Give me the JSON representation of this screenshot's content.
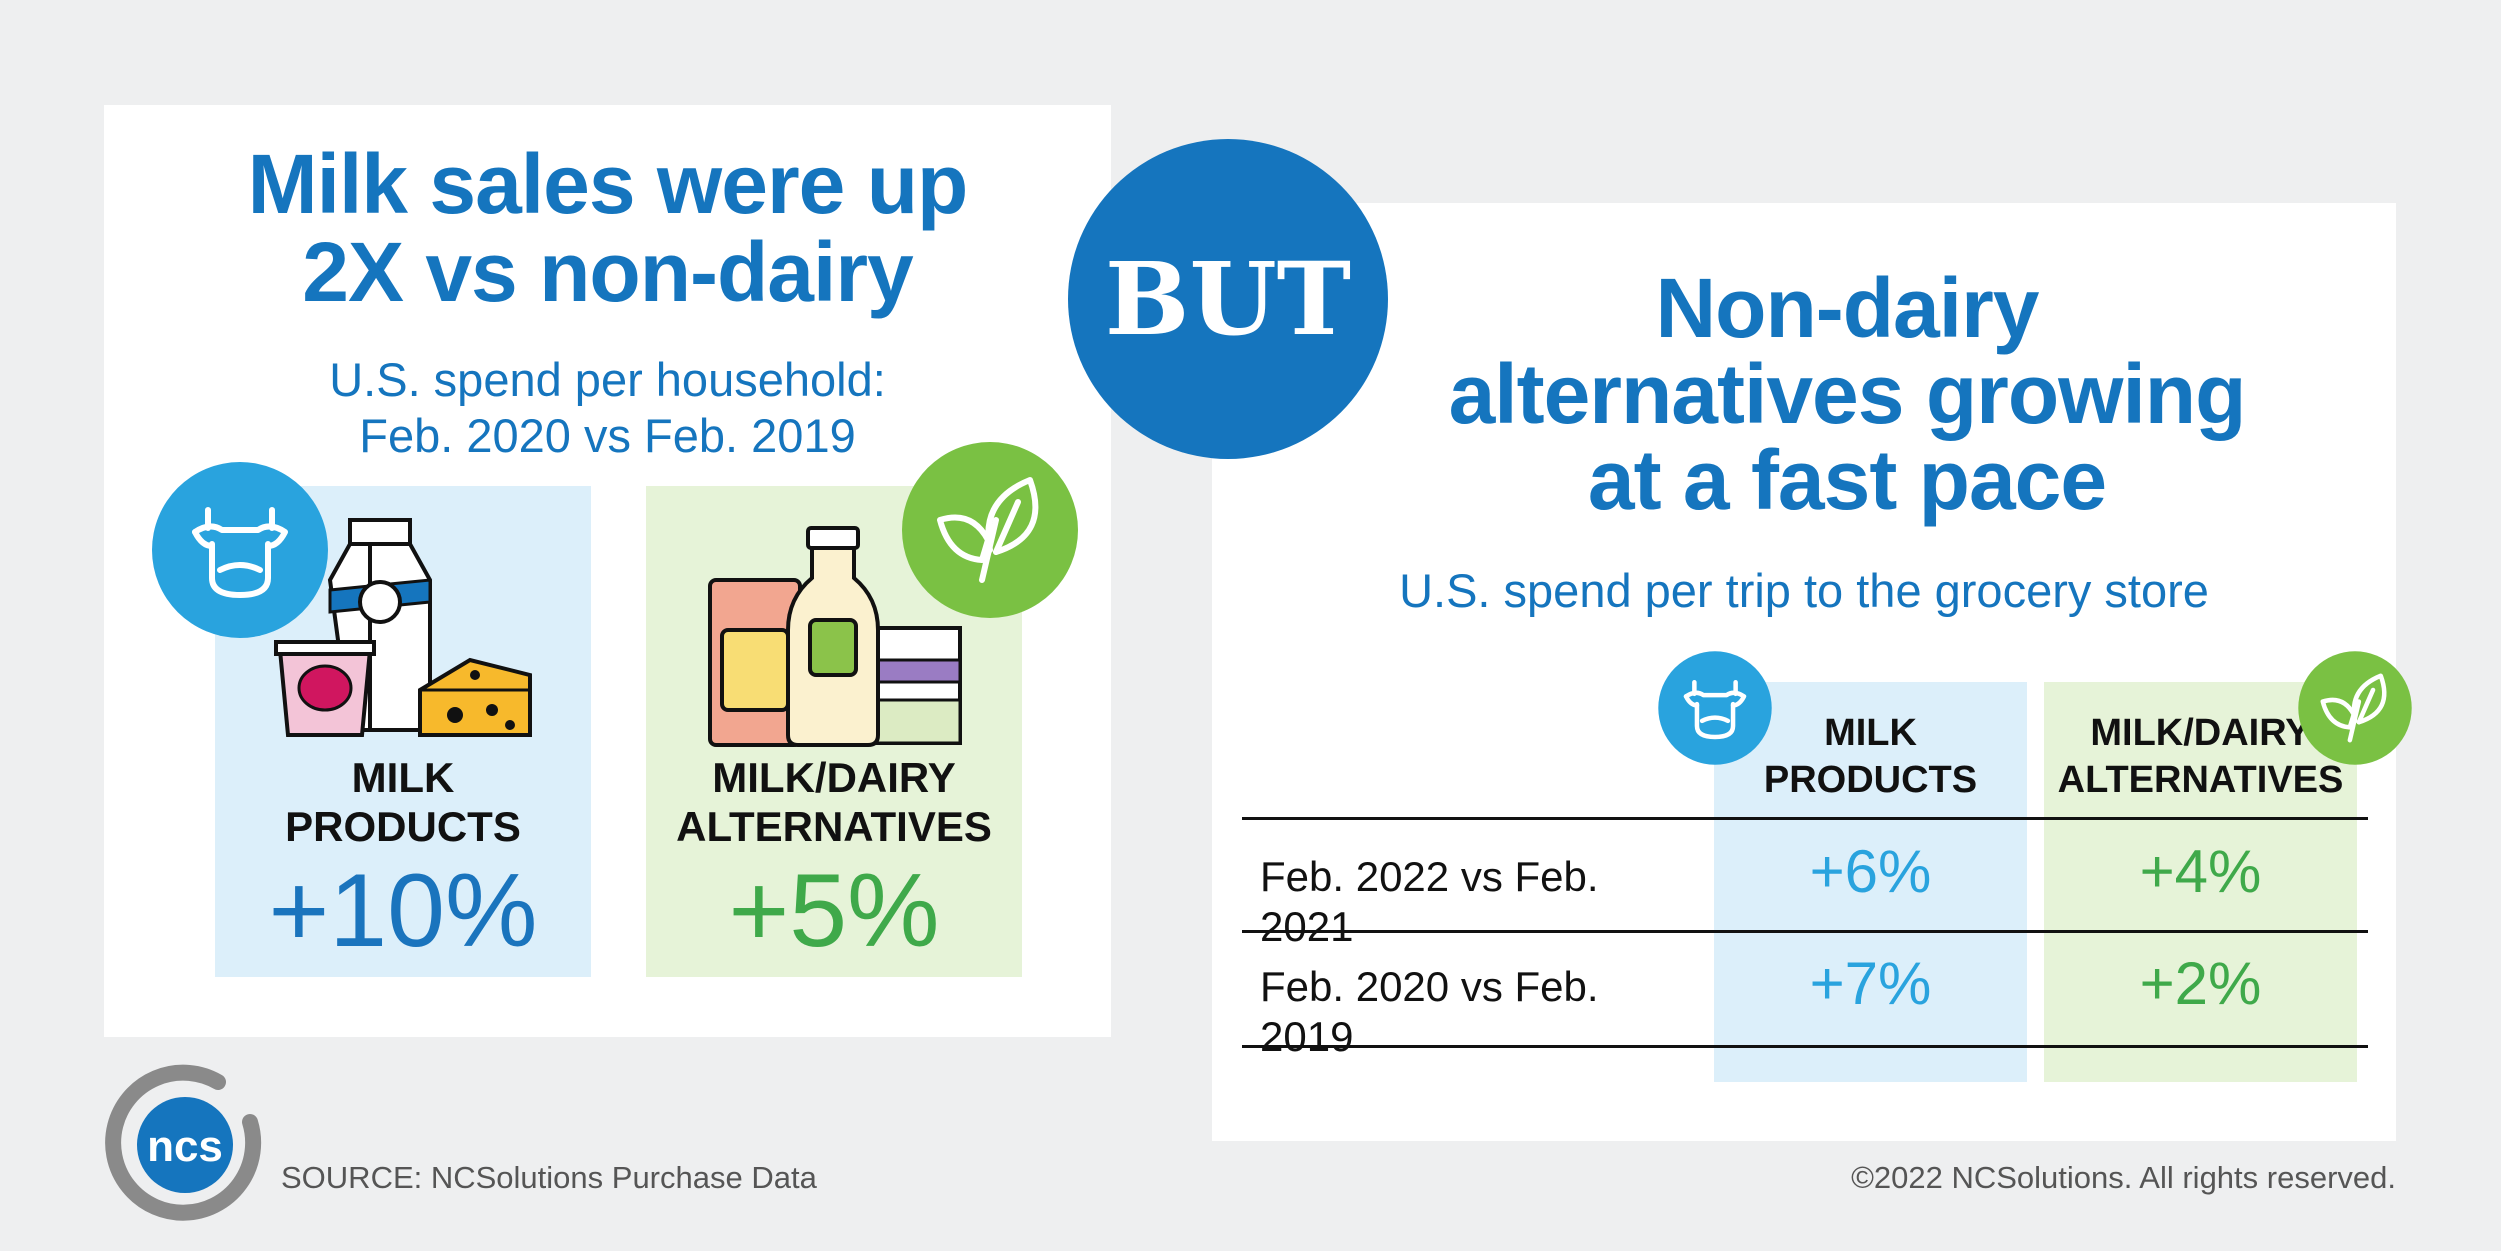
{
  "left": {
    "headline_line1": "Milk sales were up",
    "headline_line2": "2X vs non-dairy",
    "sub_line1": "U.S. spend per household:",
    "sub_line2": "Feb. 2020 vs Feb. 2019",
    "milk": {
      "label_line1": "MILK",
      "label_line2": "PRODUCTS",
      "value": "+10%"
    },
    "alt": {
      "label_line1": "MILK/DAIRY",
      "label_line2": "ALTERNATIVES",
      "value": "+5%"
    }
  },
  "connector": "BUT",
  "right": {
    "headline_line1": "Non-dairy",
    "headline_line2": "alternatives growing",
    "headline_line3": "at a fast pace",
    "sub": "U.S. spend per trip to the grocery store",
    "columns": [
      {
        "line1": "MILK",
        "line2": "PRODUCTS"
      },
      {
        "line1": "MILK/DAIRY",
        "line2": "ALTERNATIVES"
      }
    ],
    "rows": [
      {
        "label": "Feb. 2022 vs Feb. 2021",
        "milk": "+6%",
        "alt": "+4%"
      },
      {
        "label": "Feb. 2020 vs Feb. 2019",
        "milk": "+7%",
        "alt": "+2%"
      }
    ]
  },
  "footer": {
    "logo_text": "ncs",
    "source": "SOURCE: NCSolutions Purchase Data",
    "copyright": "©2022 NCSolutions. All rights reserved."
  },
  "colors": {
    "brand_blue": "#1575be",
    "milk_blue": "#29a3de",
    "alt_green": "#3fa94a",
    "light_blue_bg": "#dceffa",
    "light_green_bg": "#e6f3d8"
  },
  "icons": [
    "cow-icon",
    "leaf-icon",
    "milk-products-illustration",
    "dairy-alternatives-illustration",
    "ncs-logo"
  ]
}
